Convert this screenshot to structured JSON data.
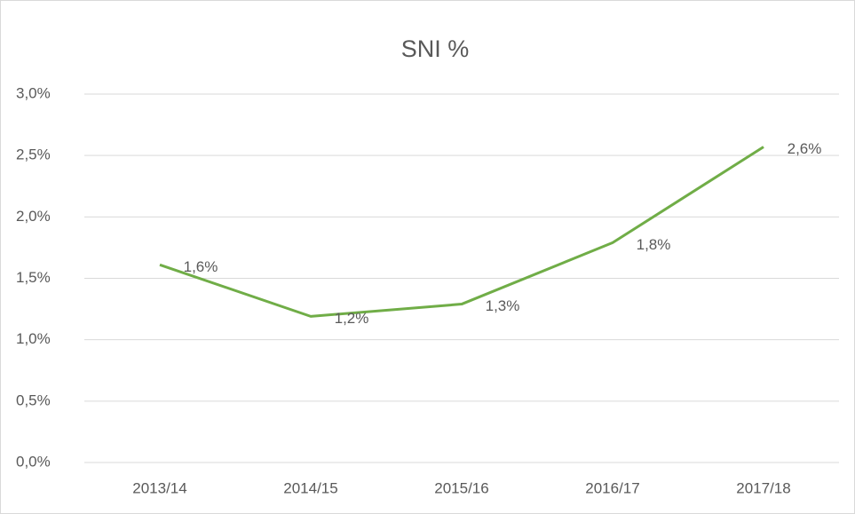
{
  "chart_data": {
    "type": "line",
    "title": "SNI %",
    "categories": [
      "2013/14",
      "2014/15",
      "2015/16",
      "2016/17",
      "2017/18"
    ],
    "series": [
      {
        "name": "SNI %",
        "color": "#70ad47",
        "values": [
          1.61,
          1.19,
          1.29,
          1.79,
          2.57
        ],
        "value_labels": [
          "1,6%",
          "1,2%",
          "1,3%",
          "1,8%",
          "2,6%"
        ]
      }
    ],
    "ylim": [
      0,
      3
    ],
    "yticks": [
      {
        "value": 0,
        "label": "0,0%"
      },
      {
        "value": 0.5,
        "label": "0,5%"
      },
      {
        "value": 1,
        "label": "1,0%"
      },
      {
        "value": 1.5,
        "label": "1,5%"
      },
      {
        "value": 2,
        "label": "2,0%"
      },
      {
        "value": 2.5,
        "label": "2,5%"
      },
      {
        "value": 3,
        "label": "3,0%"
      }
    ],
    "grid": true
  }
}
